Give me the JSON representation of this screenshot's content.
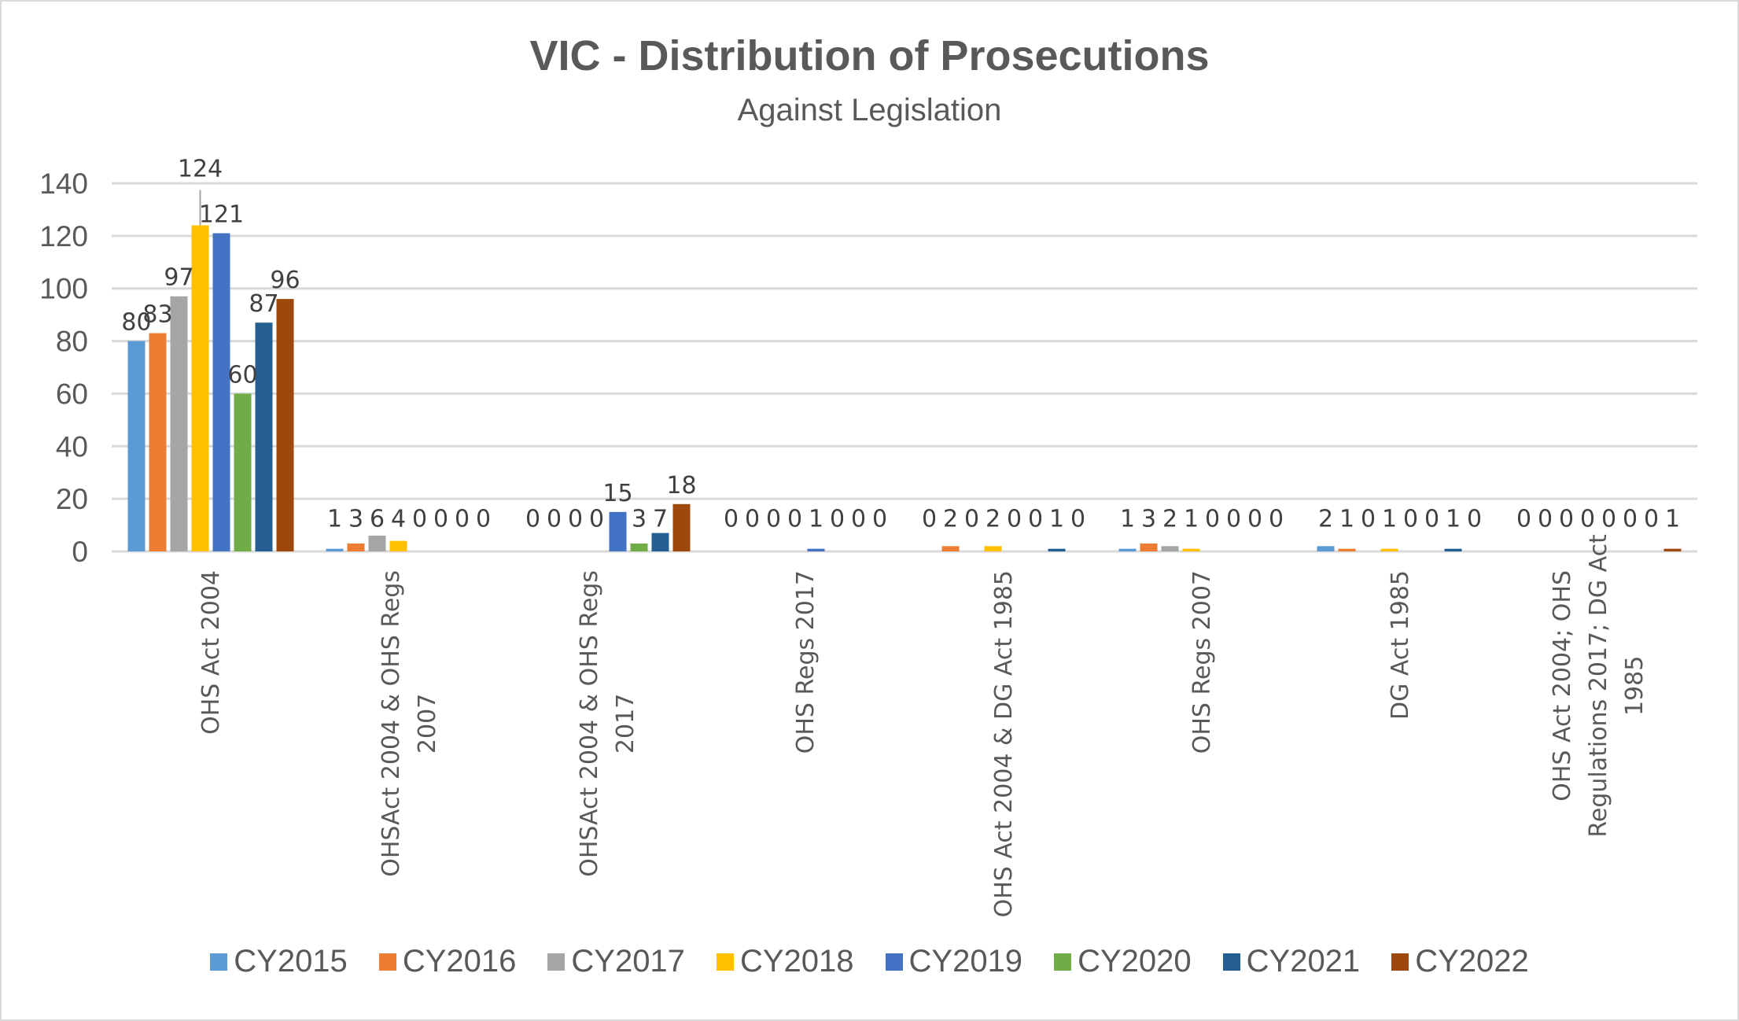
{
  "chart_data": {
    "type": "bar",
    "title": "VIC - Distribution of Prosecutions",
    "subtitle": "Against Legislation",
    "xlabel": "",
    "ylabel": "",
    "ylim": [
      0,
      140
    ],
    "yticks": [
      0,
      20,
      40,
      60,
      80,
      100,
      120,
      140
    ],
    "grid": true,
    "legend_position": "bottom",
    "categories": [
      "OHS Act 2004",
      "OHSAct 2004 & OHS Regs 2007",
      "OHSAct 2004 & OHS Regs 2017",
      "OHS Regs 2017",
      "OHS Act 2004 & DG Act 1985",
      "OHS Regs 2007",
      "DG Act 1985",
      "OHS Act 2004; OHS Regulations 2017; DG Act 1985"
    ],
    "category_label_lines": [
      [
        "OHS Act 2004"
      ],
      [
        "OHSAct 2004 & OHS Regs",
        "2007"
      ],
      [
        "OHSAct 2004 & OHS Regs",
        "2017"
      ],
      [
        "OHS Regs 2017"
      ],
      [
        "OHS Act 2004 & DG Act 1985"
      ],
      [
        "OHS Regs 2007"
      ],
      [
        "DG Act 1985"
      ],
      [
        "OHS Act 2004; OHS",
        "Regulations 2017; DG Act",
        "1985"
      ]
    ],
    "series": [
      {
        "name": "CY2015",
        "color": "#5B9BD5",
        "values": [
          80,
          1,
          0,
          0,
          0,
          1,
          2,
          0
        ]
      },
      {
        "name": "CY2016",
        "color": "#ED7D31",
        "values": [
          83,
          3,
          0,
          0,
          2,
          3,
          1,
          0
        ]
      },
      {
        "name": "CY2017",
        "color": "#A5A5A5",
        "values": [
          97,
          6,
          0,
          0,
          0,
          2,
          0,
          0
        ]
      },
      {
        "name": "CY2018",
        "color": "#FFC000",
        "values": [
          124,
          4,
          0,
          0,
          2,
          1,
          1,
          0
        ]
      },
      {
        "name": "CY2019",
        "color": "#4472C4",
        "values": [
          121,
          0,
          15,
          1,
          0,
          0,
          0,
          0
        ]
      },
      {
        "name": "CY2020",
        "color": "#70AD47",
        "values": [
          60,
          0,
          3,
          0,
          0,
          0,
          0,
          0
        ]
      },
      {
        "name": "CY2021",
        "color": "#255E91",
        "values": [
          87,
          0,
          7,
          0,
          1,
          0,
          1,
          0
        ]
      },
      {
        "name": "CY2022",
        "color": "#9E480E",
        "values": [
          96,
          0,
          18,
          0,
          0,
          0,
          0,
          1
        ]
      }
    ]
  }
}
